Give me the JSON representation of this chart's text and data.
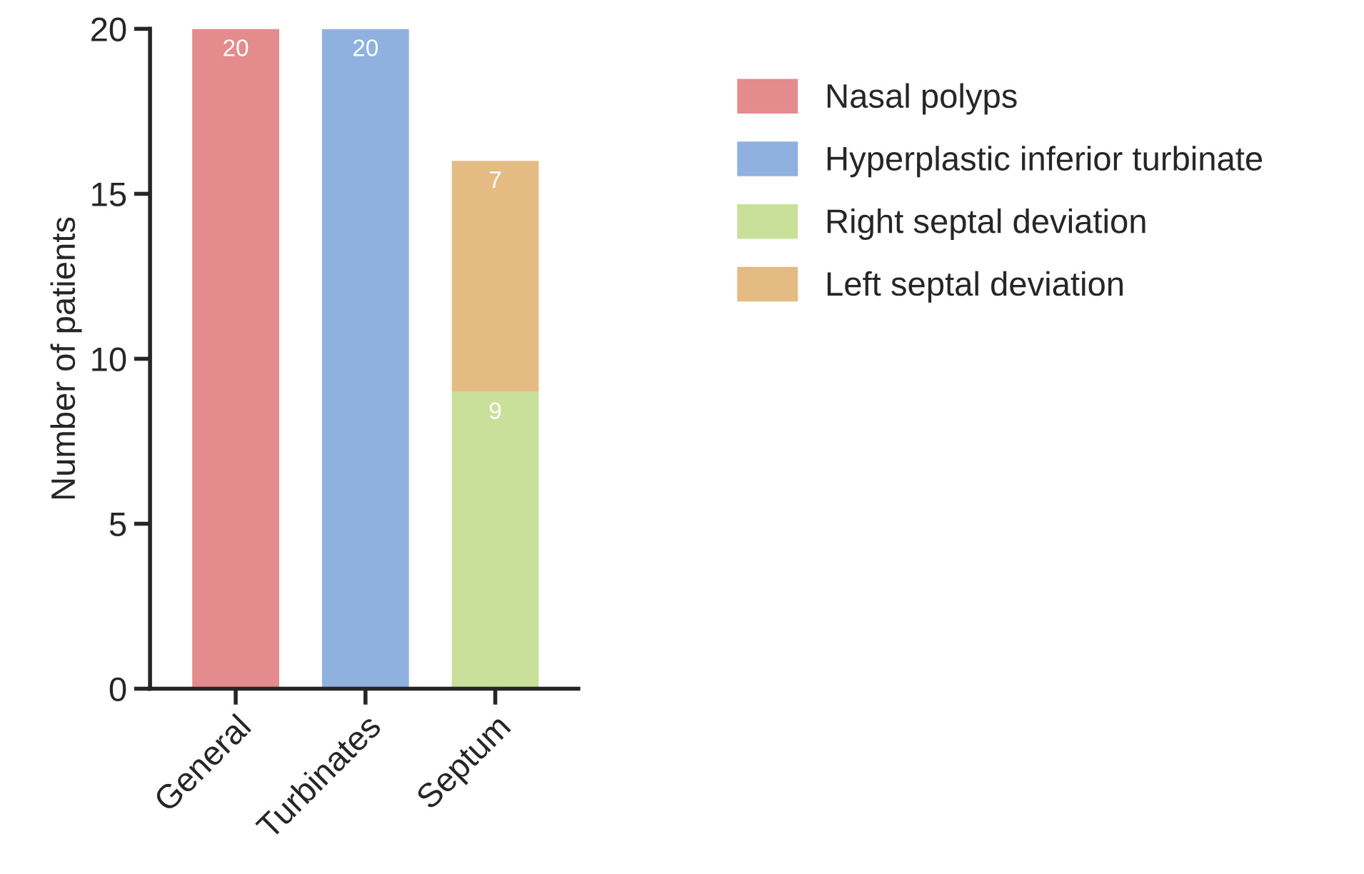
{
  "chart_data": {
    "type": "bar",
    "stacked": true,
    "ylabel": "Number of patients",
    "categories": [
      "General",
      "Turbinates",
      "Septum"
    ],
    "series": [
      {
        "name": "Nasal polyps",
        "color": "#e48b8e",
        "values": [
          20,
          null,
          null
        ]
      },
      {
        "name": "Hyperplastic inferior turbinate",
        "color": "#8fb1df",
        "values": [
          null,
          20,
          null
        ]
      },
      {
        "name": "Right septal deviation",
        "color": "#c9e09a",
        "values": [
          null,
          null,
          9
        ]
      },
      {
        "name": "Left septal deviation",
        "color": "#e5bb84",
        "values": [
          null,
          null,
          7
        ]
      }
    ],
    "ylim": [
      0,
      20
    ],
    "yticks": [
      0,
      5,
      10,
      15,
      20
    ],
    "data_labels": true,
    "legend": "right",
    "grid": false
  }
}
